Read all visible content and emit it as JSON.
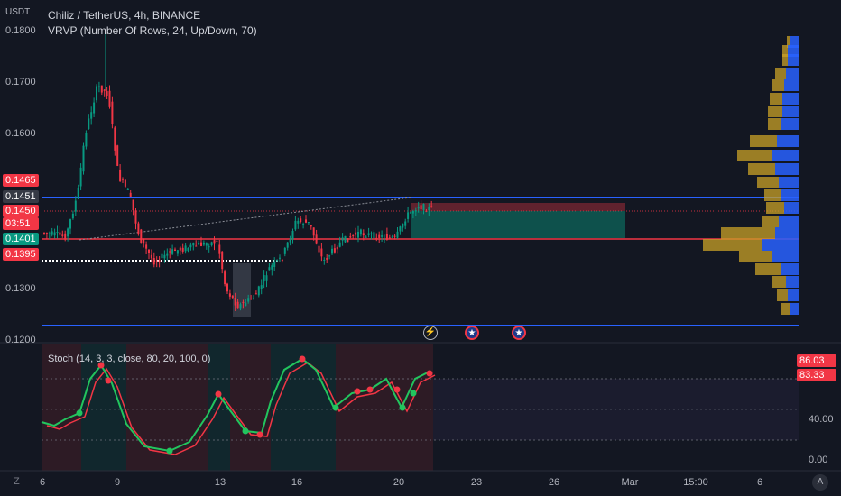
{
  "header": {
    "currency": "USDT",
    "symbol_title": "Chiliz / TetherUS, 4h, BINANCE",
    "vrvp_title": "VRVP (Number Of Rows, 24, Up/Down, 70)"
  },
  "price_axis": {
    "ticks": [
      "0.1800",
      "0.1700",
      "0.1600",
      "0.1300",
      "0.1200"
    ]
  },
  "price_tags": [
    {
      "text": "0.1465",
      "color": "#f23645"
    },
    {
      "text": "0.1451",
      "color": "#363a45"
    },
    {
      "text": "0.1450",
      "color": "#f23645"
    },
    {
      "text": "03:51",
      "color": "#f23645"
    },
    {
      "text": "0.1401",
      "color": "#089981"
    },
    {
      "text": "0.1395",
      "color": "#f23645"
    }
  ],
  "stoch": {
    "title": "Stoch (14, 3, 3, close, 80, 20, 100, 0)",
    "k_value": "86.03",
    "d_value": "83.33",
    "ticks": [
      "40.00",
      "0.00"
    ]
  },
  "time_axis": {
    "labels": [
      "9",
      "13",
      "16",
      "20",
      "23",
      "26",
      "Mar",
      "15:00",
      "6"
    ],
    "leading_label": "6"
  },
  "corner_controls": {
    "left_icon": "Z",
    "right_icon": "A"
  },
  "events": [
    {
      "icon": "lightning-icon"
    },
    {
      "icon": "us-flag-icon"
    },
    {
      "icon": "us-flag-icon"
    }
  ],
  "colors": {
    "background": "#131722",
    "bull": "#089981",
    "bear": "#f23645",
    "stoch_k": "#22c55e",
    "stoch_d": "#f23645",
    "vp_up": "#2962ff",
    "vp_down": "#c9a227",
    "line_blue": "#2962ff",
    "line_red": "#f23645"
  }
}
